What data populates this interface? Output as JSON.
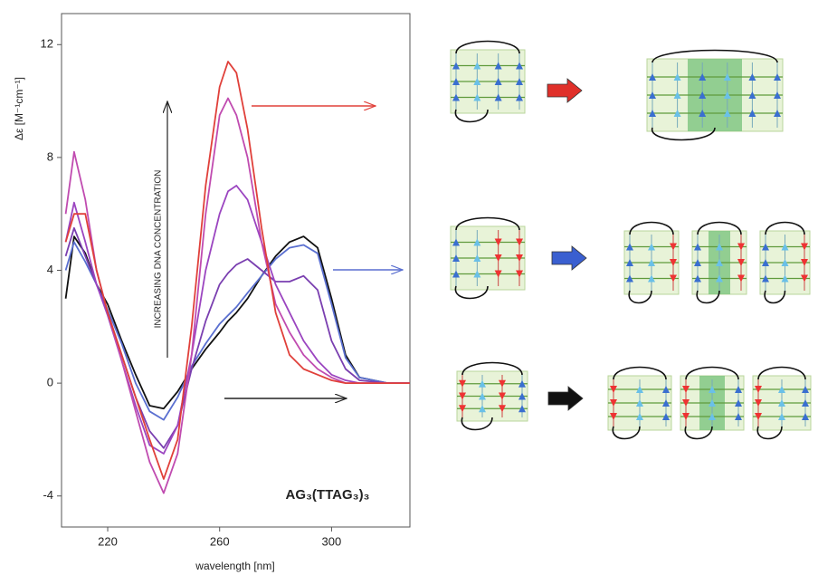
{
  "chart_data": {
    "type": "line",
    "x_label": "wavelength [nm]",
    "y_label": "Δε [M⁻¹cm⁻¹]",
    "annotations": [
      "INCREASING DNA CONCENTRATION",
      "AG₃(TTAG₃)₃"
    ],
    "xlim": [
      203.5,
      328
    ],
    "xticks": [
      220,
      260,
      300
    ],
    "ylim": [
      -5.1,
      13.1
    ],
    "yticks": [
      -4,
      0,
      4,
      8,
      12
    ],
    "x": [
      205,
      208,
      212,
      216,
      220,
      225,
      230,
      235,
      240,
      245,
      250,
      255,
      260,
      263,
      266,
      270,
      275,
      280,
      285,
      290,
      295,
      300,
      305,
      310,
      320,
      328
    ],
    "series": [
      {
        "color": "#111111",
        "values": [
          3,
          5.2,
          4.6,
          3.5,
          2.8,
          1.5,
          0.3,
          -0.8,
          -0.9,
          -0.3,
          0.5,
          1.2,
          1.8,
          2.2,
          2.5,
          3,
          3.8,
          4.5,
          5,
          5.2,
          4.8,
          3,
          1,
          0.2,
          0,
          0
        ]
      },
      {
        "color": "#5a6fd0",
        "values": [
          4,
          5,
          4.3,
          3.5,
          2.6,
          1.4,
          0,
          -1,
          -1.3,
          -0.5,
          0.6,
          1.4,
          2.1,
          2.4,
          2.7,
          3.2,
          3.8,
          4.4,
          4.8,
          4.9,
          4.6,
          2.8,
          0.9,
          0.2,
          0,
          0
        ]
      },
      {
        "color": "#7a3fb0",
        "values": [
          4.5,
          5.5,
          4.5,
          3.5,
          2.5,
          1,
          -0.5,
          -1.7,
          -2.3,
          -1.5,
          0.5,
          2.2,
          3.5,
          3.9,
          4.2,
          4.4,
          4,
          3.6,
          3.6,
          3.8,
          3.3,
          1.5,
          0.5,
          0.1,
          0,
          0
        ]
      },
      {
        "color": "#9b45c0",
        "values": [
          5,
          6.4,
          5,
          3.5,
          2.4,
          0.8,
          -0.8,
          -2.2,
          -2.5,
          -1.5,
          1,
          4,
          6,
          6.8,
          7,
          6.5,
          5,
          3.5,
          2.5,
          1.5,
          0.8,
          0.3,
          0.1,
          0,
          0,
          0
        ]
      },
      {
        "color": "#c04bb0",
        "values": [
          6,
          8.2,
          6.5,
          4,
          2.5,
          0.8,
          -1,
          -2.8,
          -3.9,
          -2.5,
          1,
          6,
          9.5,
          10.1,
          9.5,
          8,
          5,
          2.8,
          1.8,
          1,
          0.5,
          0.2,
          0,
          0,
          0,
          0
        ]
      },
      {
        "color": "#e0403a",
        "values": [
          5,
          6,
          6,
          4,
          2.5,
          1,
          -0.5,
          -2,
          -3.4,
          -2,
          2,
          7,
          10.5,
          11.4,
          11,
          9,
          5.5,
          2.5,
          1,
          0.5,
          0.3,
          0.1,
          0,
          0,
          0,
          0
        ]
      }
    ]
  }
}
